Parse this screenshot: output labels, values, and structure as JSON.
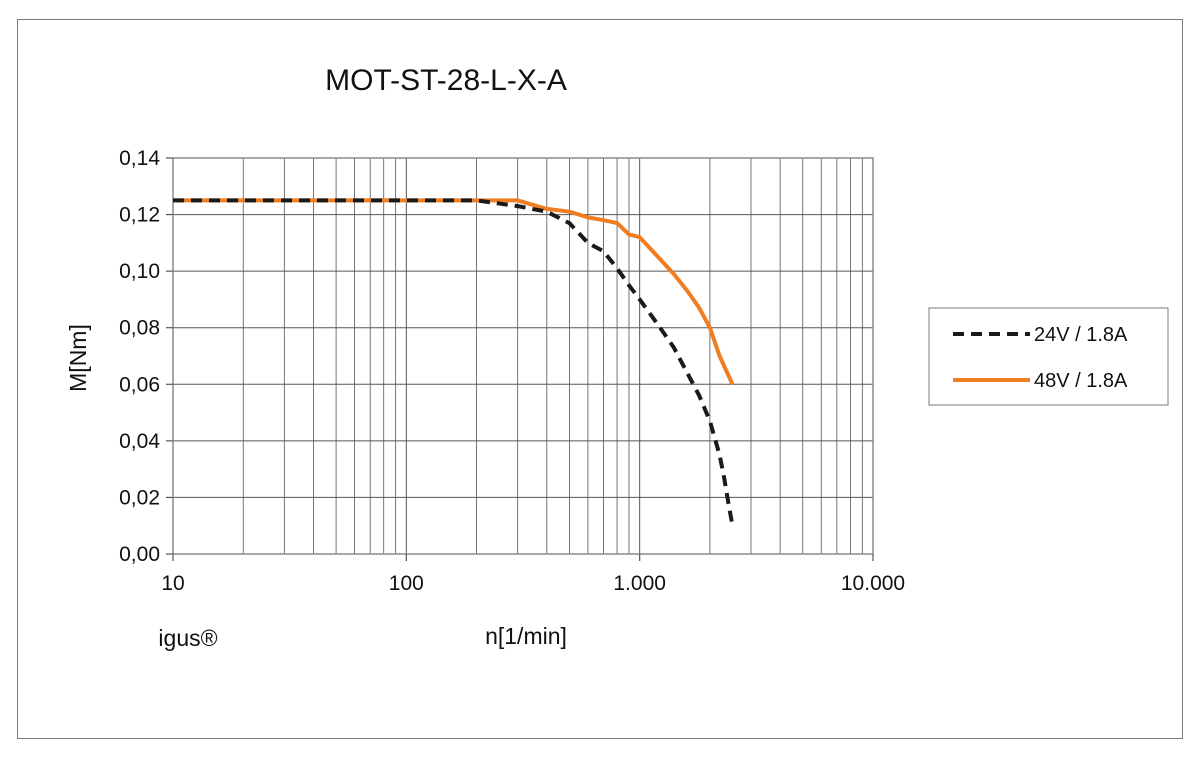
{
  "chart_data": {
    "type": "line",
    "title": "MOT-ST-28-L-X-A",
    "xlabel": "n[1/min]",
    "ylabel": "M[Nm]",
    "x_scale": "log",
    "xlim": [
      10,
      10000
    ],
    "ylim": [
      0,
      0.14
    ],
    "x_tick_labels": [
      "10",
      "100",
      "1.000",
      "10.000"
    ],
    "y_tick_labels": [
      "0,00",
      "0,02",
      "0,04",
      "0,06",
      "0,08",
      "0,10",
      "0,12",
      "0,14"
    ],
    "grid": true,
    "legend_position": "right",
    "brand_label": "igus®",
    "series": [
      {
        "name": "24V / 1.8A",
        "color": "#1a1a1a",
        "dash": "dashed",
        "points": [
          [
            10,
            0.125
          ],
          [
            100,
            0.125
          ],
          [
            200,
            0.125
          ],
          [
            300,
            0.123
          ],
          [
            400,
            0.121
          ],
          [
            500,
            0.117
          ],
          [
            600,
            0.11
          ],
          [
            700,
            0.107
          ],
          [
            800,
            0.101
          ],
          [
            900,
            0.095
          ],
          [
            1000,
            0.09
          ],
          [
            1200,
            0.081
          ],
          [
            1400,
            0.073
          ],
          [
            1600,
            0.064
          ],
          [
            1800,
            0.056
          ],
          [
            2000,
            0.047
          ],
          [
            2200,
            0.035
          ],
          [
            2300,
            0.027
          ],
          [
            2400,
            0.018
          ],
          [
            2500,
            0.01
          ]
        ]
      },
      {
        "name": "48V / 1.8A",
        "color": "#ef7d22",
        "dash": "solid",
        "points": [
          [
            10,
            0.125
          ],
          [
            100,
            0.125
          ],
          [
            200,
            0.125
          ],
          [
            300,
            0.125
          ],
          [
            400,
            0.122
          ],
          [
            500,
            0.121
          ],
          [
            600,
            0.119
          ],
          [
            700,
            0.118
          ],
          [
            800,
            0.117
          ],
          [
            900,
            0.113
          ],
          [
            1000,
            0.112
          ],
          [
            1200,
            0.105
          ],
          [
            1400,
            0.099
          ],
          [
            1600,
            0.093
          ],
          [
            1800,
            0.087
          ],
          [
            2000,
            0.08
          ],
          [
            2200,
            0.07
          ],
          [
            2500,
            0.06
          ]
        ]
      }
    ]
  }
}
